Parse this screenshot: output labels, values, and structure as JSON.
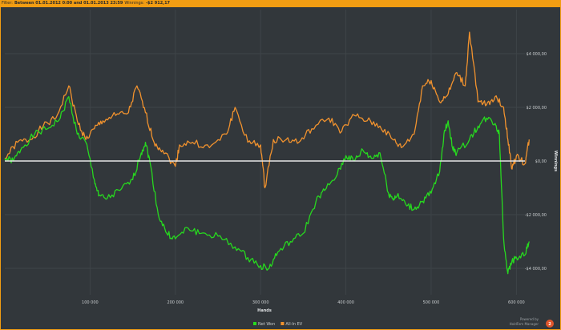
{
  "filter_bar": {
    "prefix": "Filter:",
    "range": "Between 01.01.2012 0:00 and 01.01.2013 23:59",
    "winnings_label": "Winnings:",
    "winnings_value": "-$2 912,17"
  },
  "branding": {
    "line1": "Powered by",
    "line2": "HoldFem Manager",
    "badge": "2"
  },
  "colors": {
    "net_won": "#27d81f",
    "allin_ev": "#f1922e",
    "zero_line": "#e6e6e6",
    "grid": "#3e4448",
    "accent": "#f29d12"
  },
  "chart_data": {
    "type": "line",
    "xlabel": "Hands",
    "ylabel": "Winnings",
    "xlim": [
      0,
      615000
    ],
    "ylim": [
      -5000,
      5000
    ],
    "x_ticks": [
      100000,
      200000,
      300000,
      400000,
      500000,
      600000
    ],
    "x_tick_labels": [
      "100 000",
      "200 000",
      "300 000",
      "400 000",
      "500 000",
      "600 000"
    ],
    "y_ticks": [
      4000,
      2000,
      0,
      -2000,
      -4000
    ],
    "y_tick_labels": [
      "$4 000,00",
      "$2 000,00",
      "$0,00",
      "-$2 000,00",
      "-$4 000,00"
    ],
    "grid": true,
    "legend_position": "bottom-center",
    "series": [
      {
        "name": "Net Won",
        "color": "#27d81f",
        "x": [
          0,
          10000,
          20000,
          35000,
          50000,
          65000,
          75000,
          85000,
          95000,
          105000,
          110000,
          120000,
          135000,
          150000,
          160000,
          165000,
          170000,
          180000,
          190000,
          200000,
          215000,
          230000,
          250000,
          270000,
          285000,
          300000,
          310000,
          320000,
          335000,
          350000,
          365000,
          375000,
          390000,
          400000,
          410000,
          420000,
          430000,
          440000,
          450000,
          455000,
          460000,
          470000,
          480000,
          490000,
          500000,
          510000,
          515000,
          520000,
          525000,
          530000,
          545000,
          555000,
          565000,
          575000,
          580000,
          585000,
          590000,
          595000,
          600000,
          610000,
          615000
        ],
        "values": [
          100,
          0,
          500,
          1000,
          1200,
          1600,
          2400,
          1000,
          700,
          -700,
          -1300,
          -1400,
          -1100,
          -700,
          300,
          700,
          0,
          -2000,
          -2700,
          -2900,
          -2500,
          -2700,
          -2800,
          -3200,
          -3600,
          -3900,
          -4000,
          -3400,
          -3000,
          -2700,
          -1500,
          -1100,
          -500,
          200,
          0,
          400,
          100,
          300,
          -1200,
          -1400,
          -1300,
          -1600,
          -1800,
          -1500,
          -1200,
          -400,
          1000,
          1500,
          500,
          300,
          800,
          1300,
          1600,
          1400,
          1000,
          -2900,
          -4200,
          -3700,
          -3600,
          -3500,
          -3000
        ]
      },
      {
        "name": "All-In EV",
        "color": "#f1922e",
        "x": [
          0,
          15000,
          30000,
          45000,
          60000,
          75000,
          85000,
          95000,
          105000,
          115000,
          130000,
          145000,
          155000,
          165000,
          175000,
          185000,
          200000,
          205000,
          220000,
          240000,
          260000,
          270000,
          285000,
          300000,
          305000,
          315000,
          330000,
          345000,
          360000,
          380000,
          395000,
          410000,
          425000,
          440000,
          455000,
          465000,
          480000,
          490000,
          500000,
          510000,
          520000,
          530000,
          540000,
          545000,
          555000,
          565000,
          575000,
          585000,
          590000,
          595000,
          600000,
          610000,
          615000
        ],
        "values": [
          100,
          700,
          800,
          1300,
          1600,
          2800,
          1500,
          800,
          1200,
          1500,
          1700,
          1800,
          2800,
          1800,
          700,
          400,
          -200,
          600,
          700,
          500,
          1000,
          2000,
          700,
          600,
          -1000,
          800,
          800,
          700,
          1200,
          1600,
          1100,
          1700,
          1500,
          1300,
          800,
          500,
          1000,
          2800,
          3000,
          2200,
          2500,
          3300,
          2800,
          4800,
          2200,
          2100,
          2400,
          2000,
          800,
          -300,
          200,
          -100,
          800
        ]
      }
    ]
  }
}
